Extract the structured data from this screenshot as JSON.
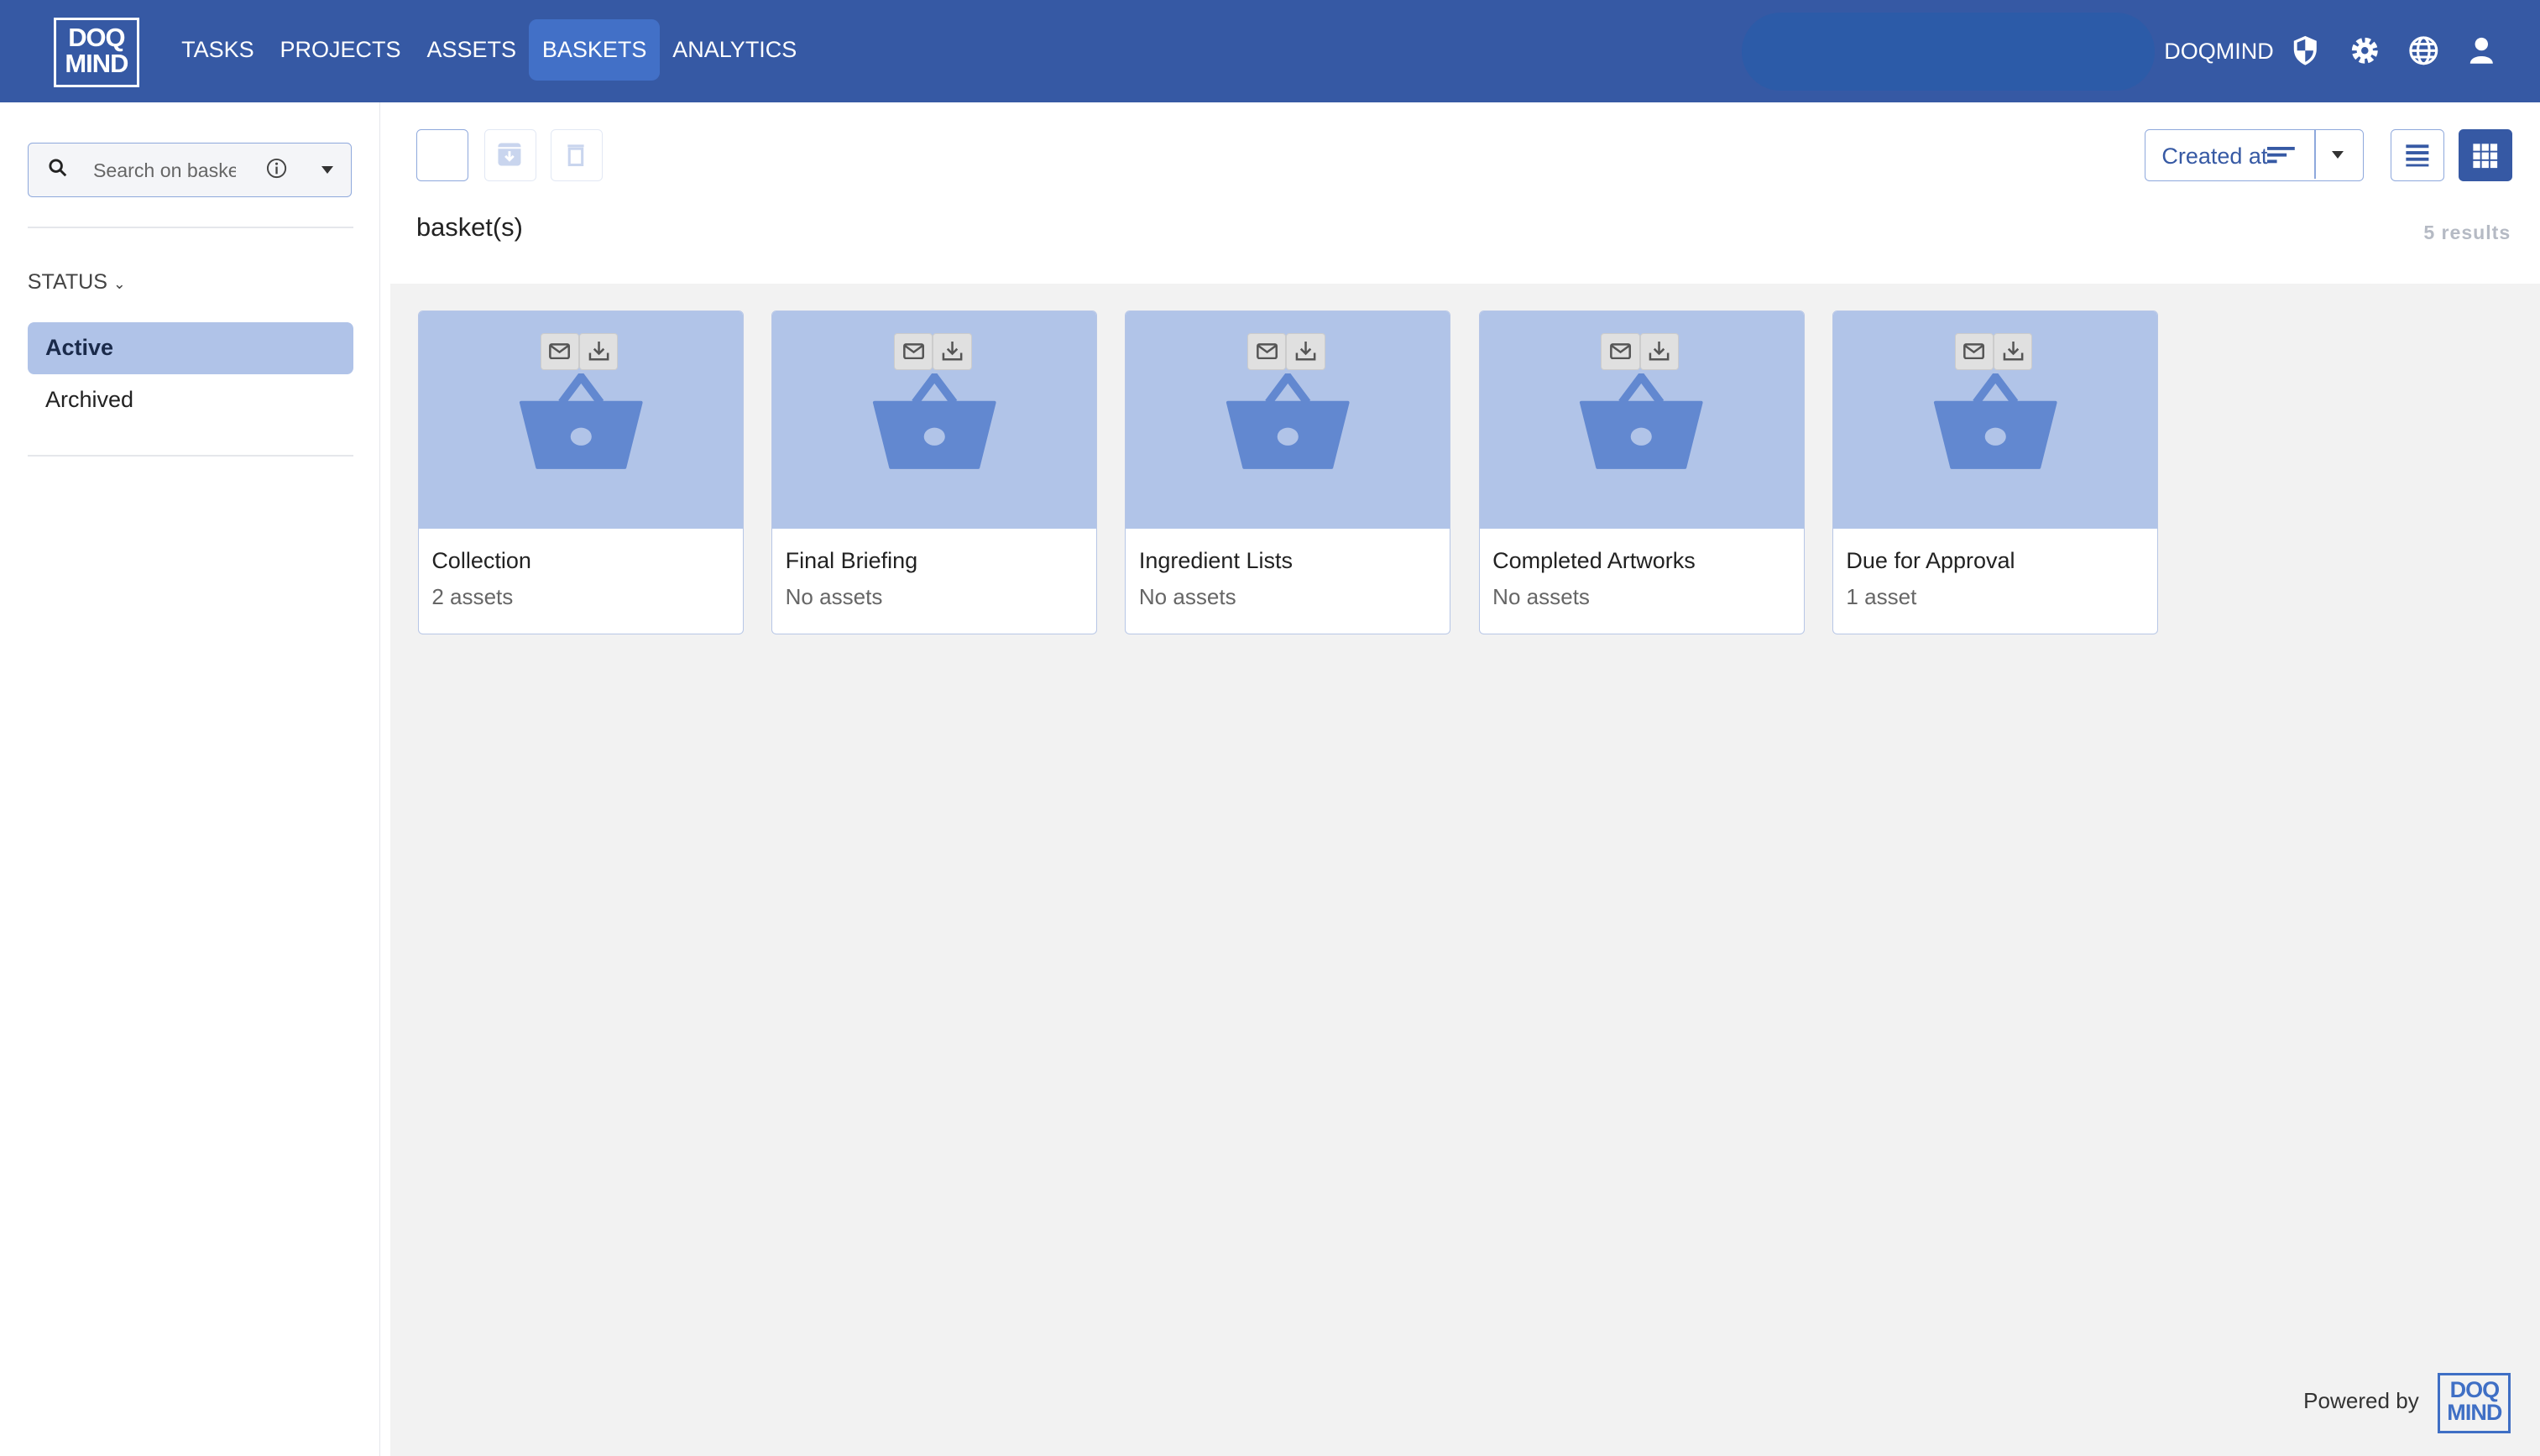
{
  "header": {
    "logo": "DOQ MIND",
    "nav": [
      {
        "label": "TASKS",
        "active": false
      },
      {
        "label": "PROJECTS",
        "active": false
      },
      {
        "label": "ASSETS",
        "active": false
      },
      {
        "label": "BASKETS",
        "active": true
      },
      {
        "label": "ANALYTICS",
        "active": false
      }
    ],
    "user": "DOQMIND",
    "icons": [
      "shield-icon",
      "gear-icon",
      "globe-icon",
      "user-icon"
    ]
  },
  "sidebar": {
    "search_placeholder": "Search on baskets",
    "status_label": "STATUS",
    "items": [
      {
        "label": "Active",
        "active": true
      },
      {
        "label": "Archived",
        "active": false
      }
    ]
  },
  "toolbar": {
    "title": "basket(s)",
    "results": "5  results",
    "sort_label": "Created at",
    "view": "grid"
  },
  "baskets": [
    {
      "name": "Collection",
      "count": "2 assets"
    },
    {
      "name": "Final Briefing",
      "count": "No assets"
    },
    {
      "name": "Ingredient Lists",
      "count": "No assets"
    },
    {
      "name": "Completed Artworks",
      "count": "No assets"
    },
    {
      "name": "Due for Approval",
      "count": "1 asset"
    }
  ],
  "footer": {
    "powered_by": "Powered by",
    "logo": "DOQ MIND"
  },
  "colors": {
    "header": "#3659a4",
    "accent": "#4270c7",
    "card_image": "#b1c4e8",
    "basket": "#6288d0"
  }
}
